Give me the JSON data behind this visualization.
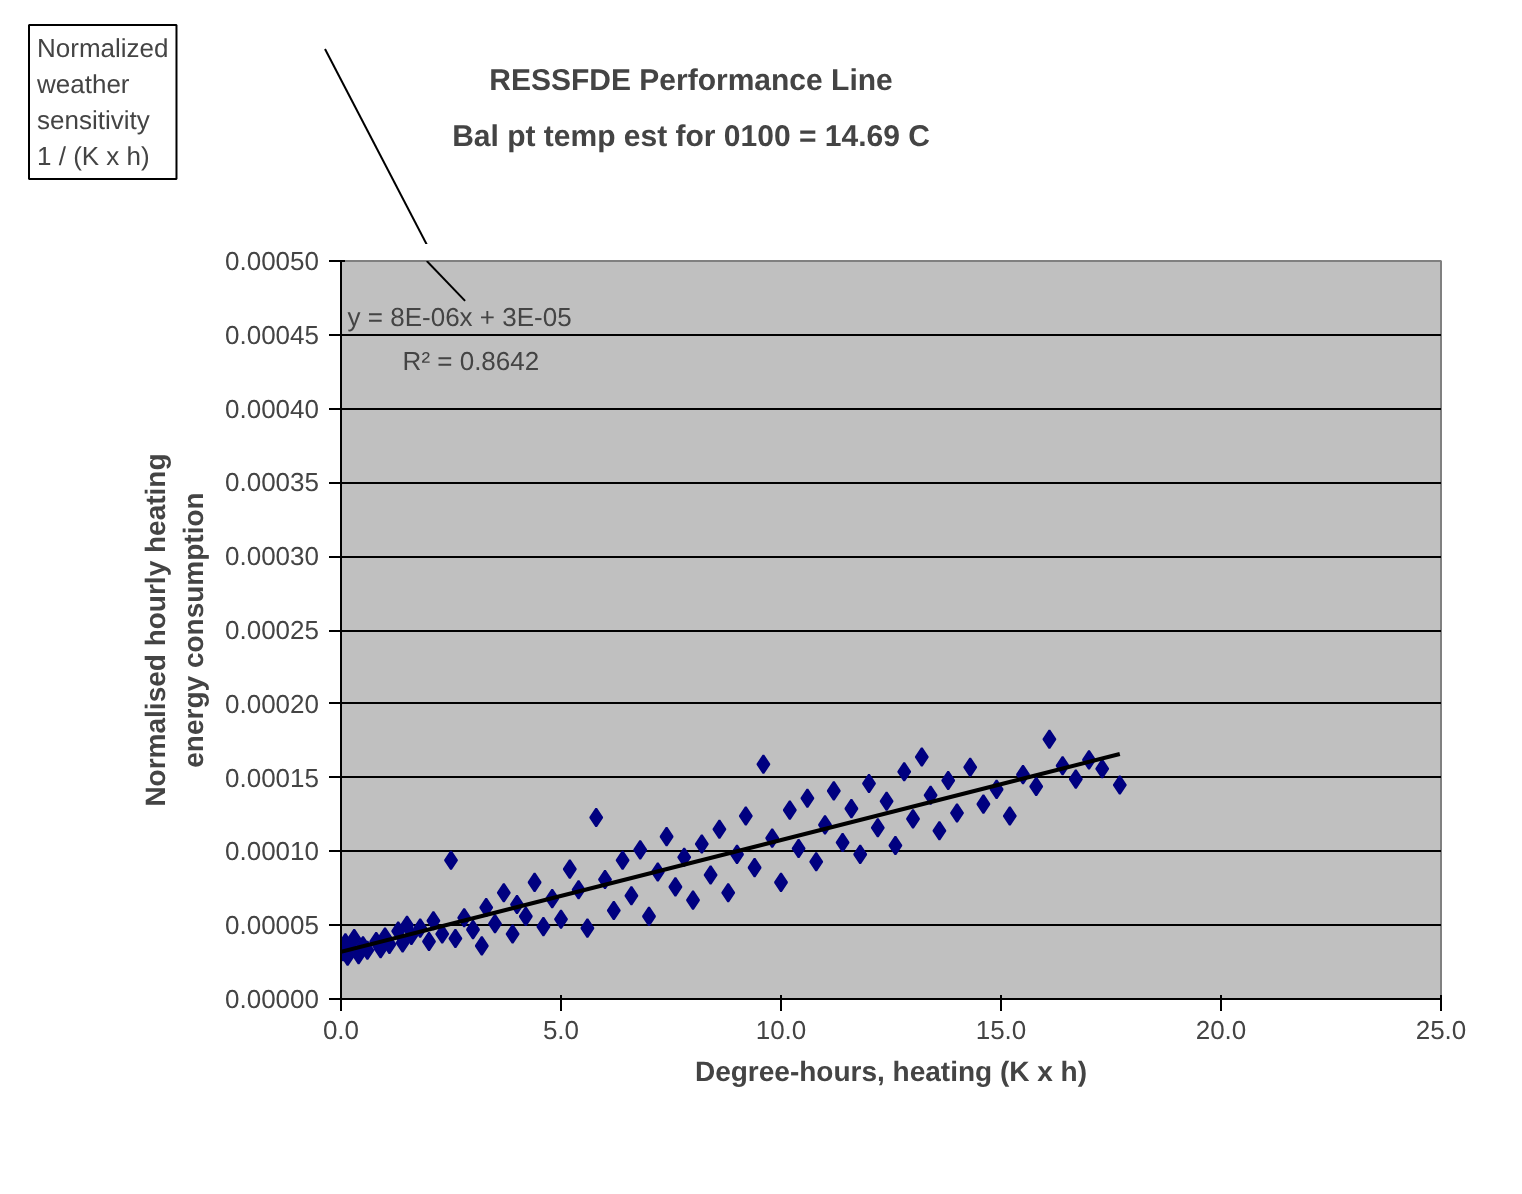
{
  "chart_data": {
    "type": "scatter",
    "title": "RESSFDE Performance Line",
    "subtitle": "Bal pt temp est for 0100 = 14.69 C",
    "xlabel": "Degree-hours, heating (K x h)",
    "ylabel": "Normalised hourly heating\nenergy consumption",
    "annotations": [
      "Normalized\nweather\nsensitivity\n1 / (K x h)",
      "y = 8E-06x + 3E-05",
      "R² = 0.8642"
    ],
    "xlim": [
      0,
      25
    ],
    "ylim": [
      0,
      0.0005
    ],
    "xticks": [
      {
        "value": 0,
        "label": "0.0"
      },
      {
        "value": 5,
        "label": "5.0"
      },
      {
        "value": 10,
        "label": "10.0"
      },
      {
        "value": 15,
        "label": "15.0"
      },
      {
        "value": 20,
        "label": "20.0"
      },
      {
        "value": 25,
        "label": "25.0"
      }
    ],
    "yticks": [
      {
        "value": 0,
        "label": "0.00000"
      },
      {
        "value": 5e-05,
        "label": "0.00005"
      },
      {
        "value": 0.0001,
        "label": "0.00010"
      },
      {
        "value": 0.00015,
        "label": "0.00015"
      },
      {
        "value": 0.0002,
        "label": "0.00020"
      },
      {
        "value": 0.00025,
        "label": "0.00025"
      },
      {
        "value": 0.0003,
        "label": "0.00030"
      },
      {
        "value": 0.00035,
        "label": "0.00035"
      },
      {
        "value": 0.0004,
        "label": "0.00040"
      },
      {
        "value": 0.00045,
        "label": "0.00045"
      },
      {
        "value": 0.0005,
        "label": "0.00050"
      }
    ],
    "grid": "y",
    "marker": "diamond",
    "series": [
      {
        "color": "#000080",
        "x": [
          0.05,
          0.1,
          0.15,
          0.2,
          0.3,
          0.4,
          0.5,
          0.6,
          0.8,
          0.9,
          1.0,
          1.1,
          1.3,
          1.4,
          1.5,
          1.6,
          1.8,
          2.0,
          2.1,
          2.3,
          2.5,
          2.6,
          2.8,
          3.0,
          3.2,
          3.3,
          3.5,
          3.7,
          3.9,
          4.0,
          4.2,
          4.4,
          4.6,
          4.8,
          5.0,
          5.2,
          5.4,
          5.6,
          5.8,
          6.0,
          6.2,
          6.4,
          6.6,
          6.8,
          7.0,
          7.2,
          7.4,
          7.6,
          7.8,
          8.0,
          8.2,
          8.4,
          8.6,
          8.8,
          9.0,
          9.2,
          9.4,
          9.6,
          9.8,
          10.0,
          10.2,
          10.4,
          10.6,
          10.8,
          11.0,
          11.2,
          11.4,
          11.6,
          11.8,
          12.0,
          12.2,
          12.4,
          12.6,
          12.8,
          13.0,
          13.2,
          13.4,
          13.6,
          13.8,
          14.0,
          14.3,
          14.6,
          14.9,
          15.2,
          15.5,
          15.8,
          16.1,
          16.4,
          16.7,
          17.0,
          17.3,
          17.7
        ],
        "values": [
          3.2e-05,
          3.8e-05,
          2.9e-05,
          3.5e-05,
          4.1e-05,
          3e-05,
          3.6e-05,
          3.3e-05,
          3.9e-05,
          3.4e-05,
          4.2e-05,
          3.7e-05,
          4.6e-05,
          3.8e-05,
          5e-05,
          4.3e-05,
          4.8e-05,
          3.9e-05,
          5.3e-05,
          4.4e-05,
          9.4e-05,
          4.1e-05,
          5.5e-05,
          4.7e-05,
          3.6e-05,
          6.2e-05,
          5.1e-05,
          7.2e-05,
          4.4e-05,
          6.4e-05,
          5.6e-05,
          7.9e-05,
          4.9e-05,
          6.8e-05,
          5.4e-05,
          8.8e-05,
          7.4e-05,
          4.8e-05,
          0.000123,
          8.1e-05,
          6e-05,
          9.4e-05,
          7e-05,
          0.000101,
          5.6e-05,
          8.6e-05,
          0.00011,
          7.6e-05,
          9.6e-05,
          6.7e-05,
          0.000105,
          8.4e-05,
          0.000115,
          7.2e-05,
          9.8e-05,
          0.000124,
          8.9e-05,
          0.000159,
          0.000109,
          7.9e-05,
          0.000128,
          0.000102,
          0.000136,
          9.3e-05,
          0.000118,
          0.000141,
          0.000106,
          0.000129,
          9.8e-05,
          0.000146,
          0.000116,
          0.000134,
          0.000104,
          0.000154,
          0.000122,
          0.000164,
          0.000138,
          0.000114,
          0.000148,
          0.000126,
          0.000157,
          0.000132,
          0.000142,
          0.000124,
          0.000152,
          0.000144,
          0.000176,
          0.000158,
          0.000149,
          0.000162,
          0.000156,
          0.000145
        ]
      },
      {
        "type": "line",
        "color": "#000000",
        "marker": "none",
        "x": [
          0,
          17.7
        ],
        "values": [
          3.2e-05,
          0.000166
        ]
      }
    ]
  }
}
